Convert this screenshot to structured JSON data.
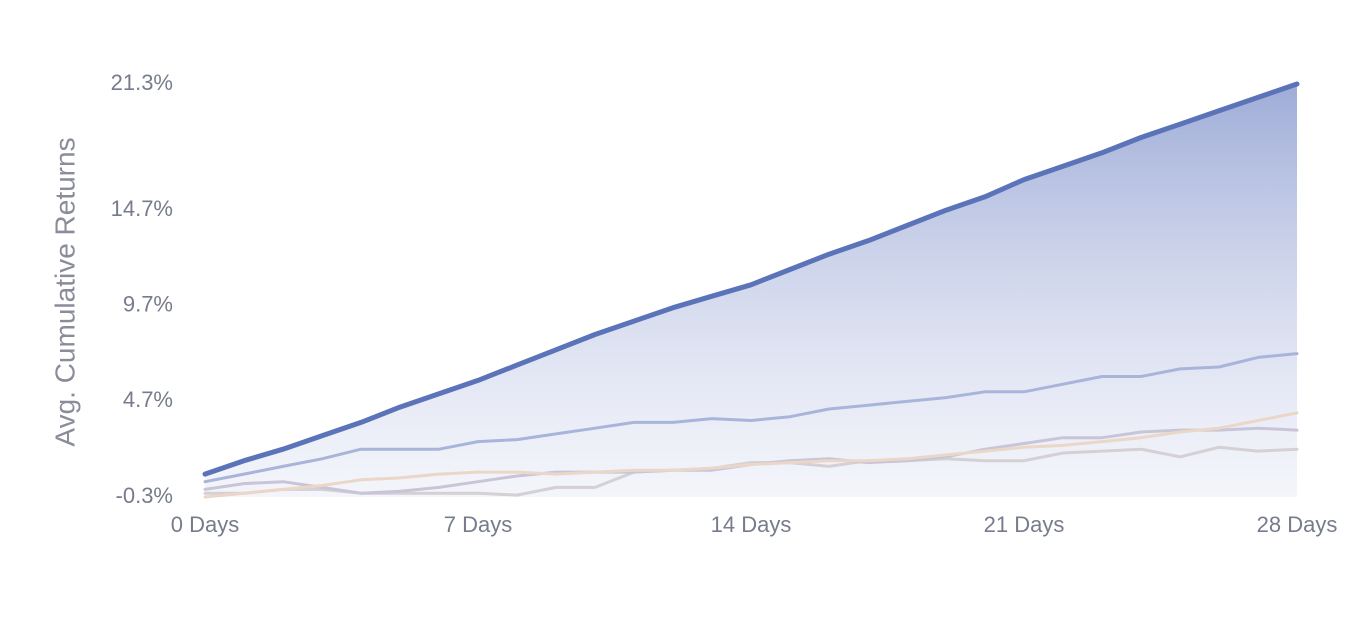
{
  "chart_data": {
    "type": "line",
    "y_label": "Avg. Cumulative Returns",
    "x": [
      0,
      1,
      2,
      3,
      4,
      5,
      6,
      7,
      8,
      9,
      10,
      11,
      12,
      13,
      14,
      15,
      16,
      17,
      18,
      19,
      20,
      21,
      22,
      23,
      24,
      25,
      26,
      27,
      28
    ],
    "xlim": [
      0,
      28
    ],
    "xticks": [
      {
        "value": 0,
        "label": "0 Days"
      },
      {
        "value": 7,
        "label": "7 Days"
      },
      {
        "value": 14,
        "label": "14 Days"
      },
      {
        "value": 21,
        "label": "21 Days"
      },
      {
        "value": 28,
        "label": "28 Days"
      }
    ],
    "ylim": [
      -0.3,
      21.3
    ],
    "yticks": [
      {
        "value": -0.3,
        "label": "-0.3%"
      },
      {
        "value": 4.7,
        "label": "4.7%"
      },
      {
        "value": 9.7,
        "label": "9.7%"
      },
      {
        "value": 14.7,
        "label": "14.7%"
      },
      {
        "value": 21.3,
        "label": "21.3%"
      }
    ],
    "grid": false,
    "series": [
      {
        "color": "#5b73b8",
        "area": true,
        "values": [
          0.9,
          1.6,
          2.2,
          2.9,
          3.6,
          4.4,
          5.1,
          5.8,
          6.6,
          7.4,
          8.2,
          8.9,
          9.6,
          10.2,
          10.8,
          11.6,
          12.4,
          13.1,
          13.9,
          14.7,
          15.4,
          16.3,
          17.0,
          17.7,
          18.5,
          19.2,
          19.9,
          20.6,
          21.3
        ]
      },
      {
        "color": "#a9b4db",
        "values": [
          0.5,
          0.9,
          1.3,
          1.7,
          2.2,
          2.2,
          2.2,
          2.6,
          2.7,
          3.0,
          3.3,
          3.6,
          3.6,
          3.8,
          3.7,
          3.9,
          4.3,
          4.5,
          4.7,
          4.9,
          5.2,
          5.2,
          5.6,
          6.0,
          6.0,
          6.4,
          6.5,
          7.0,
          7.2
        ]
      },
      {
        "color": "#ead7c8",
        "values": [
          -0.3,
          -0.1,
          0.1,
          0.3,
          0.6,
          0.7,
          0.9,
          1.0,
          1.0,
          0.9,
          1.0,
          1.1,
          1.1,
          1.2,
          1.4,
          1.5,
          1.6,
          1.6,
          1.7,
          1.9,
          2.1,
          2.3,
          2.4,
          2.6,
          2.8,
          3.1,
          3.3,
          3.7,
          4.1
        ]
      },
      {
        "color": "#c8c5d9",
        "values": [
          0.1,
          0.4,
          0.5,
          0.2,
          -0.1,
          0.0,
          0.2,
          0.5,
          0.8,
          1.0,
          1.0,
          1.0,
          1.1,
          1.1,
          1.4,
          1.6,
          1.7,
          1.5,
          1.6,
          1.8,
          2.2,
          2.5,
          2.8,
          2.8,
          3.1,
          3.2,
          3.2,
          3.3,
          3.2
        ]
      },
      {
        "color": "#d4d0d4",
        "values": [
          -0.1,
          -0.1,
          0.1,
          0.1,
          -0.1,
          -0.1,
          -0.1,
          -0.1,
          -0.2,
          0.2,
          0.2,
          1.0,
          1.1,
          1.2,
          1.5,
          1.5,
          1.3,
          1.6,
          1.6,
          1.7,
          1.6,
          1.6,
          2.0,
          2.1,
          2.2,
          1.8,
          2.3,
          2.1,
          2.2
        ]
      }
    ]
  }
}
